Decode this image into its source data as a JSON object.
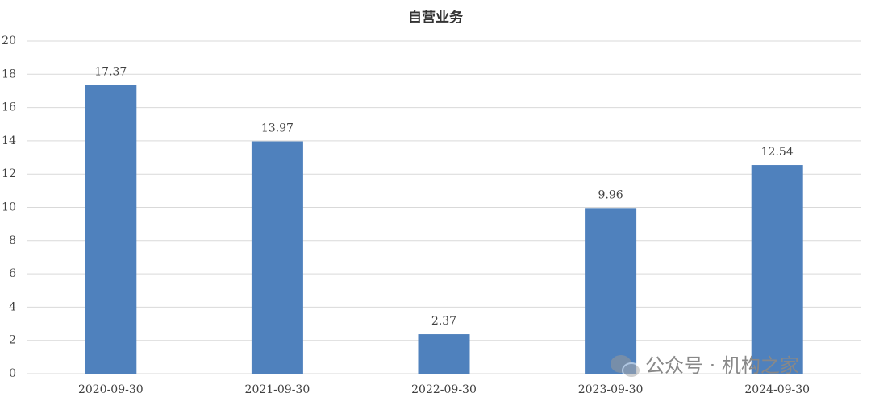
{
  "chart_data": {
    "type": "bar",
    "title": "自营业务",
    "categories": [
      "2020-09-30",
      "2021-09-30",
      "2022-09-30",
      "2023-09-30",
      "2024-09-30"
    ],
    "values": [
      17.37,
      13.97,
      2.37,
      9.96,
      12.54
    ],
    "color": "#4f81bd",
    "ylim": [
      0,
      20
    ],
    "yticks": [
      0,
      2,
      4,
      6,
      8,
      10,
      12,
      14,
      16,
      18,
      20
    ],
    "grid": true
  },
  "watermark": "公众号 · 机构之家"
}
